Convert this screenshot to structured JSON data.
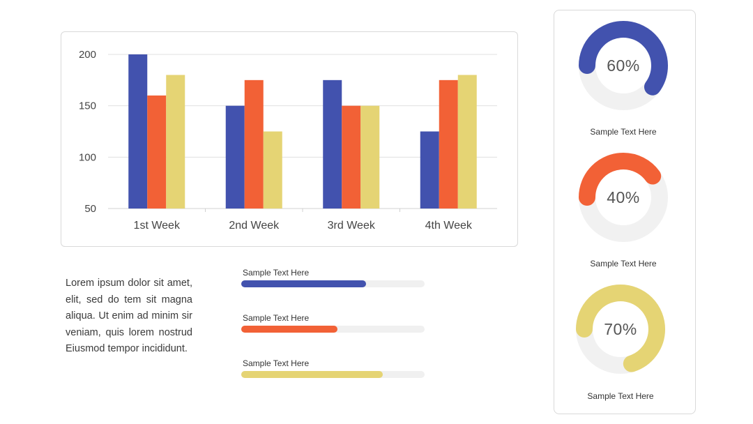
{
  "chart_data": {
    "type": "bar",
    "categories": [
      "1st Week",
      "2nd Week",
      "3rd Week",
      "4th Week"
    ],
    "series": [
      {
        "values": [
          200,
          150,
          175,
          125
        ],
        "color": "#4252AE"
      },
      {
        "values": [
          160,
          175,
          150,
          175
        ],
        "color": "#F26136"
      },
      {
        "values": [
          180,
          125,
          150,
          180
        ],
        "color": "#E5D474"
      }
    ],
    "ylim": [
      50,
      200
    ],
    "yticks": [
      "200",
      "150",
      "100",
      "50"
    ],
    "grid": true,
    "title": "",
    "xlabel": "",
    "ylabel": ""
  },
  "body_text": "Lorem ipsum dolor sit amet, elit, sed do tem sit magna aliqua. Ut enim ad minim sir veniam, quis lorem nostrud Eiusmod tempor incididunt.",
  "progress_bars": [
    {
      "label": "Sample Text Here",
      "value": 0.68,
      "color": "#4252AE"
    },
    {
      "label": "Sample Text Here",
      "value": 0.525,
      "color": "#F26136"
    },
    {
      "label": "Sample Text Here",
      "value": 0.77,
      "color": "#E5D474"
    }
  ],
  "donuts": [
    {
      "value_text": "60%",
      "value": 0.6,
      "color": "#4252AE",
      "caption": "Sample Text Here"
    },
    {
      "value_text": "40%",
      "value": 0.4,
      "color": "#F26136",
      "caption": "Sample Text Here"
    },
    {
      "value_text": "70%",
      "value": 0.7,
      "color": "#E5D474",
      "caption": "Sample Text Here"
    }
  ]
}
